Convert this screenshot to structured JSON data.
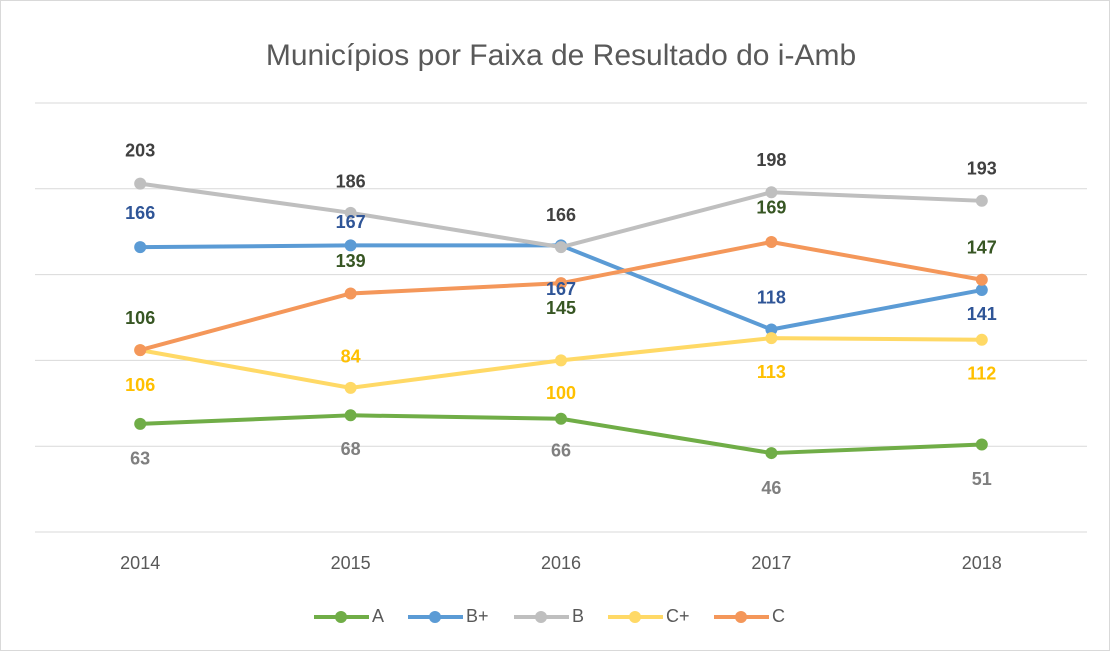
{
  "chart_data": {
    "type": "line",
    "title": "Municípios por Faixa de Resultado do i-Amb",
    "categories": [
      "2014",
      "2015",
      "2016",
      "2017",
      "2018"
    ],
    "series": [
      {
        "name": "A",
        "color": "#70ad47",
        "label_color": "#7f7f7f",
        "values": [
          63,
          68,
          66,
          46,
          51
        ]
      },
      {
        "name": "B+",
        "color": "#5b9bd5",
        "label_color": "#2f5597",
        "values": [
          166,
          167,
          167,
          118,
          141
        ]
      },
      {
        "name": "B",
        "color": "#bfbfbf",
        "label_color": "#404040",
        "values": [
          203,
          186,
          166,
          198,
          193
        ]
      },
      {
        "name": "C+",
        "color": "#ffd966",
        "label_color": "#ffc000",
        "values": [
          106,
          84,
          100,
          113,
          112
        ]
      },
      {
        "name": "C",
        "color": "#f4975a",
        "label_color": "#375623",
        "values": [
          106,
          139,
          145,
          169,
          147
        ]
      }
    ],
    "ylim": [
      0,
      250
    ],
    "yticks": [
      0,
      50,
      100,
      150,
      200,
      250
    ],
    "grid": true,
    "legend": "bottom"
  }
}
